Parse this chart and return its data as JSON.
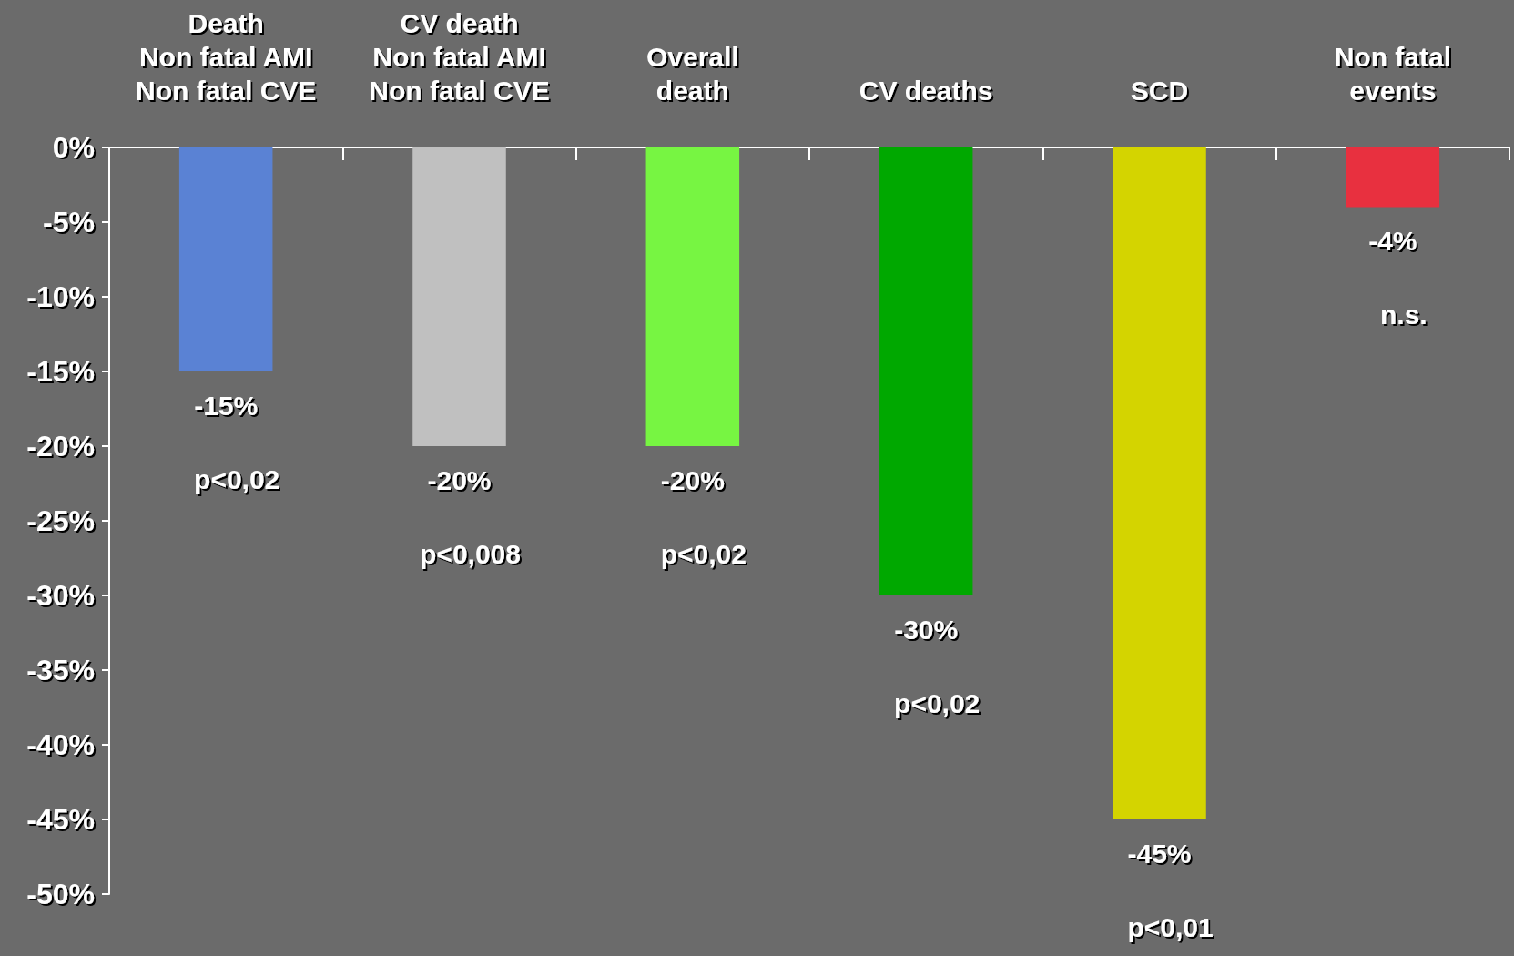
{
  "chart_data": {
    "type": "bar",
    "categories": [
      "Death\nNon fatal AMI\nNon fatal CVE",
      "CV death\nNon fatal AMI\nNon fatal CVE",
      "Overall\ndeath",
      "CV deaths",
      "SCD",
      "Non fatal\nevents"
    ],
    "values": [
      -15,
      -20,
      -20,
      -30,
      -45,
      -4
    ],
    "colors": [
      "#5a82d4",
      "#c0c0c0",
      "#77f542",
      "#00a800",
      "#d4d400",
      "#e8303f"
    ],
    "value_labels": [
      "-15%",
      "-20%",
      "-20%",
      "-30%",
      "-45%",
      "-4%"
    ],
    "ylim": [
      -50,
      0
    ],
    "yticks": [
      {
        "value": 0,
        "label": "0%"
      },
      {
        "value": -5,
        "label": "-5%"
      },
      {
        "value": -10,
        "label": "-10%"
      },
      {
        "value": -15,
        "label": "-15%"
      },
      {
        "value": -20,
        "label": "-20%"
      },
      {
        "value": -25,
        "label": "-25%"
      },
      {
        "value": -30,
        "label": "-30%"
      },
      {
        "value": -35,
        "label": "-35%"
      },
      {
        "value": -40,
        "label": "-40%"
      },
      {
        "value": -45,
        "label": "-45%"
      },
      {
        "value": -50,
        "label": "-50%"
      }
    ],
    "annotations": [
      "p<0,02",
      "p<0,008",
      "p<0,02",
      "p<0,02",
      "p<0,01",
      "n.s."
    ],
    "grid": false
  }
}
